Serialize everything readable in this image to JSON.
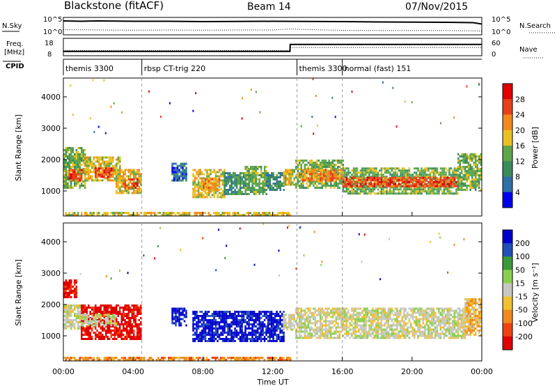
{
  "header": {
    "title": "Blackstone (fitACF)",
    "beam": "Beam 14",
    "date": "07/Nov/2015"
  },
  "colors": {
    "power_scale": [
      "#0000ee",
      "#2e6fa8",
      "#3a8c5c",
      "#5fa64a",
      "#e8c020",
      "#f08a1c",
      "#e8401a",
      "#e00000"
    ],
    "velocity_scale": [
      "#e00000",
      "#f04010",
      "#f08a1c",
      "#f0c030",
      "#c8c8c0",
      "#8ad050",
      "#3a9a3a",
      "#2050b8",
      "#0000cc"
    ],
    "ground_scatter": "#c8c8c0"
  },
  "chart_data": [
    {
      "type": "line",
      "name": "noise-panel",
      "ylabel_left": "N.Sky",
      "ylabel_right": "N.Search",
      "left_ticks": [
        "10^5",
        "10^0"
      ],
      "right_ticks": [
        "10^5",
        "10^0"
      ],
      "x_range_hours": [
        0,
        24
      ],
      "series": [
        {
          "name": "N.Sky",
          "style": "solid",
          "x": [
            0,
            1,
            2,
            4,
            6,
            8,
            10,
            12,
            14,
            16,
            18,
            20,
            22,
            23.5,
            24
          ],
          "y": [
            0.8,
            0.78,
            0.8,
            0.78,
            0.78,
            0.76,
            0.77,
            0.78,
            0.77,
            0.76,
            0.74,
            0.73,
            0.72,
            0.7,
            0.62
          ]
        },
        {
          "name": "N.Search",
          "style": "dotted",
          "x": [
            0,
            2,
            4,
            6,
            8,
            10,
            12,
            13,
            14,
            16,
            18,
            20,
            22,
            24
          ],
          "y": [
            0.3,
            0.28,
            0.27,
            0.28,
            0.27,
            0.28,
            0.28,
            0.34,
            0.3,
            0.26,
            0.25,
            0.25,
            0.25,
            0.22
          ]
        }
      ]
    },
    {
      "type": "line",
      "name": "frequency-panel",
      "ylabel_left": "Freq. [MHz]",
      "ylabel_right": "Nave",
      "left_ticks": [
        "18",
        "8"
      ],
      "right_ticks": [
        "60",
        "0"
      ],
      "x_range_hours": [
        0,
        24
      ],
      "series": [
        {
          "name": "Freq.",
          "style": "solid",
          "x": [
            0,
            13,
            13.01,
            24
          ],
          "y": [
            10.5,
            10.5,
            14.5,
            14.5
          ]
        },
        {
          "name": "Nave",
          "style": "dotted",
          "x": [
            0,
            13,
            13.01,
            24
          ],
          "y": [
            18,
            18,
            28,
            28
          ]
        }
      ]
    },
    {
      "type": "table",
      "name": "cpid-panel",
      "label": "CPID",
      "segments": [
        {
          "start": 0,
          "end": 4.5,
          "label": "themis 3300"
        },
        {
          "start": 4.5,
          "end": 13.4,
          "label": "rbsp CT-trig 220"
        },
        {
          "start": 13.4,
          "end": 16,
          "label": "themis 3300"
        },
        {
          "start": 16,
          "end": 24,
          "label": "normal (fast) 151"
        }
      ]
    },
    {
      "type": "heatmap",
      "name": "power-panel",
      "ylabel": "Slant Range [km]",
      "yticks": [
        1000,
        2000,
        3000,
        4000
      ],
      "ylim": [
        200,
        4600
      ],
      "colorbar_label": "Power [dB]",
      "colorbar_ticks": [
        "28",
        "24",
        "20",
        "16",
        "12",
        "8",
        "4"
      ],
      "x_range_hours": [
        0,
        24
      ],
      "regions": [
        {
          "t0": 0.0,
          "t1": 1.2,
          "r0": 1100,
          "r1": 2400,
          "level": 3
        },
        {
          "t0": 0.3,
          "t1": 1.0,
          "r0": 1300,
          "r1": 1700,
          "level": 6
        },
        {
          "t0": 1.2,
          "t1": 3.2,
          "r0": 1300,
          "r1": 2100,
          "level": 4
        },
        {
          "t0": 1.8,
          "t1": 2.8,
          "r0": 1450,
          "r1": 1750,
          "level": 6
        },
        {
          "t0": 3.0,
          "t1": 4.4,
          "r0": 900,
          "r1": 1700,
          "level": 4
        },
        {
          "t0": 3.4,
          "t1": 4.2,
          "r0": 1100,
          "r1": 1400,
          "level": 6
        },
        {
          "t0": 6.2,
          "t1": 7.0,
          "r0": 1300,
          "r1": 1900,
          "level": 1
        },
        {
          "t0": 7.4,
          "t1": 9.2,
          "r0": 800,
          "r1": 1700,
          "level": 4
        },
        {
          "t0": 7.9,
          "t1": 8.9,
          "r0": 1000,
          "r1": 1400,
          "level": 5
        },
        {
          "t0": 9.2,
          "t1": 10.4,
          "r0": 900,
          "r1": 1600,
          "level": 2
        },
        {
          "t0": 10.4,
          "t1": 11.6,
          "r0": 900,
          "r1": 1800,
          "level": 3
        },
        {
          "t0": 11.6,
          "t1": 12.6,
          "r0": 1000,
          "r1": 1600,
          "level": 2
        },
        {
          "t0": 12.6,
          "t1": 13.2,
          "r0": 1200,
          "r1": 1700,
          "level": 4
        },
        {
          "t0": 13.3,
          "t1": 16.0,
          "r0": 1100,
          "r1": 2000,
          "level": 3
        },
        {
          "t0": 13.6,
          "t1": 16.0,
          "r0": 1350,
          "r1": 1700,
          "level": 5
        },
        {
          "t0": 16.0,
          "t1": 22.6,
          "r0": 900,
          "r1": 1750,
          "level": 3
        },
        {
          "t0": 16.0,
          "t1": 22.6,
          "r0": 1150,
          "r1": 1450,
          "level": 6
        },
        {
          "t0": 22.6,
          "t1": 23.9,
          "r0": 1000,
          "r1": 2200,
          "level": 3
        },
        {
          "t0": 0.0,
          "t1": 13.0,
          "r0": 230,
          "r1": 330,
          "level": 4
        }
      ]
    },
    {
      "type": "heatmap",
      "name": "velocity-panel",
      "ylabel": "Slant Range [km]",
      "yticks": [
        1000,
        2000,
        3000,
        4000
      ],
      "ylim": [
        200,
        4600
      ],
      "colorbar_label": "Velocity [m s⁻¹]",
      "colorbar_ticks": [
        "200",
        "100",
        "50",
        "15",
        "-15",
        "-50",
        "-100",
        "-200"
      ],
      "x_range_hours": [
        0,
        24
      ],
      "xticks": [
        "00:00",
        "04:00",
        "08:00",
        "12:00",
        "16:00",
        "20:00",
        "00:00"
      ],
      "xlabel": "Time UT",
      "regions": [
        {
          "t0": 0.0,
          "t1": 1.0,
          "r0": 1200,
          "r1": 2000,
          "level": 4
        },
        {
          "t0": 0.0,
          "t1": 0.7,
          "r0": 2200,
          "r1": 2800,
          "level": 0
        },
        {
          "t0": 1.0,
          "t1": 4.4,
          "r0": 900,
          "r1": 2000,
          "level": 0
        },
        {
          "t0": 1.0,
          "t1": 3.0,
          "r0": 1300,
          "r1": 1700,
          "level": 4
        },
        {
          "t0": 6.2,
          "t1": 7.0,
          "r0": 1300,
          "r1": 1900,
          "level": 8
        },
        {
          "t0": 7.4,
          "t1": 12.6,
          "r0": 800,
          "r1": 1800,
          "level": 8
        },
        {
          "t0": 12.6,
          "t1": 13.2,
          "r0": 1200,
          "r1": 1700,
          "level": 4
        },
        {
          "t0": 13.3,
          "t1": 23.0,
          "r0": 900,
          "r1": 1900,
          "level": 4
        },
        {
          "t0": 23.0,
          "t1": 23.9,
          "r0": 1000,
          "r1": 2200,
          "level": 3
        },
        {
          "t0": 0.0,
          "t1": 13.0,
          "r0": 230,
          "r1": 330,
          "level": 2
        }
      ]
    }
  ]
}
